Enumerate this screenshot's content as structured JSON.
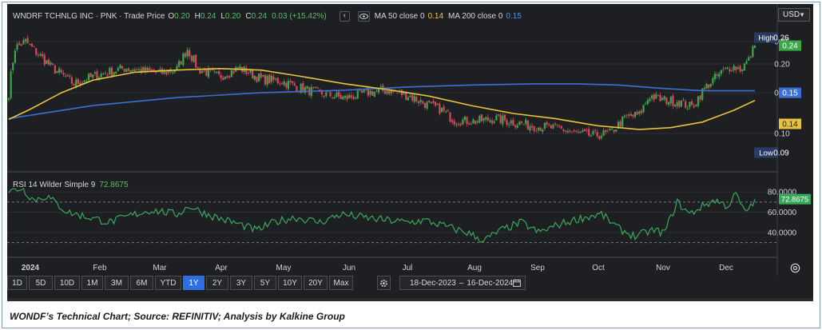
{
  "legend": {
    "symbol": "WNDRF TCHNLG INC · PNK · Trade Price",
    "o_label": "O",
    "o_value": "0.20",
    "h_label": "H",
    "h_value": "0.24",
    "l_label": "L",
    "l_value": "0.20",
    "c_label": "C",
    "c_value": "0.24",
    "change": "0.03 (+15.42%)",
    "ma50_label": "MA 50 close 0",
    "ma50_value": "0.14",
    "ma200_label": "MA 200 close 0",
    "ma200_value": "0.15",
    "collapse_icon": "chevron-left-icon",
    "visibility_icon": "eye-icon"
  },
  "currency": {
    "label": "USD",
    "icon": "chevron-down-icon"
  },
  "rsi_legend": {
    "label": "RSI 14 Wilder Simple 9",
    "value": "72.8675"
  },
  "colors": {
    "panel": "#1e1f22",
    "up": "#3aa84a",
    "down": "#d8455c",
    "ma50": "#e8c33a",
    "ma200": "#3a6fd8",
    "rsi": "#39a85a",
    "active_tab": "#2f6ee0"
  },
  "tabs": [
    {
      "label": "1D"
    },
    {
      "label": "5D"
    },
    {
      "label": "10D"
    },
    {
      "label": "1M"
    },
    {
      "label": "3M"
    },
    {
      "label": "6M"
    },
    {
      "label": "YTD"
    },
    {
      "label": "1Y",
      "active": true
    },
    {
      "label": "2Y"
    },
    {
      "label": "3Y"
    },
    {
      "label": "5Y"
    },
    {
      "label": "10Y"
    },
    {
      "label": "20Y"
    },
    {
      "label": "Max"
    }
  ],
  "date_range": {
    "from": "18-Dec-2023",
    "separator": "–",
    "to": "16-Dec-2024",
    "icon": "calendar-icon"
  },
  "settings_icon": "settings-icon",
  "caption": "WONDF’s Technical Chart; Source: REFINITIV; Analysis by Kalkine Group",
  "chart_data": {
    "type": "candlestick",
    "title": "WNDRF TCHNLG INC · PNK · Trade Price",
    "x_tick_labels": [
      "2024",
      "Feb",
      "Mar",
      "Apr",
      "May",
      "Jun",
      "Jul",
      "Aug",
      "Sep",
      "Oct",
      "Nov",
      "Dec"
    ],
    "price_axis": {
      "ticks": [
        0.1,
        0.15,
        0.2,
        0.25
      ],
      "tick_labels": [
        "0.10",
        "0.15",
        "0.20",
        "0.25"
      ],
      "ylim": [
        0.08,
        0.275
      ],
      "scale": "log"
    },
    "price_markers": [
      {
        "label": "High",
        "value": "0.26",
        "style": "high"
      },
      {
        "label": "",
        "value": "0.24",
        "style": "last"
      },
      {
        "label": "",
        "value": "0.15",
        "style": "ma200"
      },
      {
        "label": "",
        "value": "0.14",
        "style": "ma50"
      },
      {
        "label": "Low",
        "value": "0.09",
        "style": "low"
      }
    ],
    "price_anchors": [
      {
        "i": 0,
        "v": 0.15
      },
      {
        "i": 3,
        "v": 0.235
      },
      {
        "i": 8,
        "v": 0.25
      },
      {
        "i": 14,
        "v": 0.22
      },
      {
        "i": 20,
        "v": 0.195
      },
      {
        "i": 25,
        "v": 0.18
      },
      {
        "i": 31,
        "v": 0.164
      },
      {
        "i": 40,
        "v": 0.176
      },
      {
        "i": 55,
        "v": 0.192
      },
      {
        "i": 65,
        "v": 0.186
      },
      {
        "i": 72,
        "v": 0.182
      },
      {
        "i": 80,
        "v": 0.19
      },
      {
        "i": 85,
        "v": 0.232
      },
      {
        "i": 90,
        "v": 0.19
      },
      {
        "i": 100,
        "v": 0.176
      },
      {
        "i": 110,
        "v": 0.192
      },
      {
        "i": 120,
        "v": 0.172
      },
      {
        "i": 130,
        "v": 0.168
      },
      {
        "i": 140,
        "v": 0.156
      },
      {
        "i": 150,
        "v": 0.148
      },
      {
        "i": 160,
        "v": 0.142
      },
      {
        "i": 170,
        "v": 0.15
      },
      {
        "i": 180,
        "v": 0.154
      },
      {
        "i": 190,
        "v": 0.146
      },
      {
        "i": 200,
        "v": 0.132
      },
      {
        "i": 205,
        "v": 0.128
      },
      {
        "i": 212,
        "v": 0.114
      },
      {
        "i": 222,
        "v": 0.113
      },
      {
        "i": 232,
        "v": 0.116
      },
      {
        "i": 242,
        "v": 0.111
      },
      {
        "i": 252,
        "v": 0.107
      },
      {
        "i": 262,
        "v": 0.105
      },
      {
        "i": 270,
        "v": 0.1
      },
      {
        "i": 278,
        "v": 0.098
      },
      {
        "i": 286,
        "v": 0.1
      },
      {
        "i": 294,
        "v": 0.118
      },
      {
        "i": 300,
        "v": 0.12
      },
      {
        "i": 305,
        "v": 0.146
      },
      {
        "i": 310,
        "v": 0.14
      },
      {
        "i": 318,
        "v": 0.138
      },
      {
        "i": 325,
        "v": 0.13
      },
      {
        "i": 332,
        "v": 0.16
      },
      {
        "i": 338,
        "v": 0.18
      },
      {
        "i": 344,
        "v": 0.196
      },
      {
        "i": 348,
        "v": 0.19
      },
      {
        "i": 352,
        "v": 0.207
      },
      {
        "i": 355,
        "v": 0.24
      }
    ],
    "sessions": 356,
    "ma50": [
      [
        0,
        0.115
      ],
      [
        10,
        0.127
      ],
      [
        25,
        0.15
      ],
      [
        40,
        0.17
      ],
      [
        60,
        0.184
      ],
      [
        80,
        0.188
      ],
      [
        100,
        0.191
      ],
      [
        120,
        0.188
      ],
      [
        140,
        0.176
      ],
      [
        160,
        0.164
      ],
      [
        180,
        0.155
      ],
      [
        200,
        0.145
      ],
      [
        220,
        0.132
      ],
      [
        240,
        0.122
      ],
      [
        260,
        0.116
      ],
      [
        280,
        0.108
      ],
      [
        300,
        0.104
      ],
      [
        315,
        0.106
      ],
      [
        330,
        0.112
      ],
      [
        345,
        0.126
      ],
      [
        355,
        0.139
      ]
    ],
    "ma200": [
      [
        0,
        0.116
      ],
      [
        40,
        0.132
      ],
      [
        80,
        0.143
      ],
      [
        120,
        0.15
      ],
      [
        160,
        0.154
      ],
      [
        190,
        0.159
      ],
      [
        220,
        0.162
      ],
      [
        250,
        0.164
      ],
      [
        270,
        0.164
      ],
      [
        290,
        0.162
      ],
      [
        310,
        0.157
      ],
      [
        330,
        0.153
      ],
      [
        355,
        0.153
      ]
    ],
    "rsi": {
      "label": "RSI 14 Wilder Simple 9",
      "value": "72.8675",
      "ticks": [
        "80.0000",
        "60.0000",
        "40.0000"
      ],
      "tick_values": [
        80,
        60,
        40
      ],
      "ylim": [
        25,
        88
      ],
      "guides": [
        70,
        30
      ],
      "last_marker": "72.8675",
      "anchors": [
        {
          "i": 0,
          "v": 80
        },
        {
          "i": 6,
          "v": 84
        },
        {
          "i": 12,
          "v": 72
        },
        {
          "i": 18,
          "v": 76
        },
        {
          "i": 28,
          "v": 60
        },
        {
          "i": 36,
          "v": 56
        },
        {
          "i": 48,
          "v": 50
        },
        {
          "i": 60,
          "v": 58
        },
        {
          "i": 68,
          "v": 62
        },
        {
          "i": 80,
          "v": 58
        },
        {
          "i": 86,
          "v": 66
        },
        {
          "i": 92,
          "v": 60
        },
        {
          "i": 100,
          "v": 54
        },
        {
          "i": 110,
          "v": 48
        },
        {
          "i": 118,
          "v": 42
        },
        {
          "i": 126,
          "v": 50
        },
        {
          "i": 136,
          "v": 55
        },
        {
          "i": 148,
          "v": 50
        },
        {
          "i": 158,
          "v": 58
        },
        {
          "i": 168,
          "v": 55
        },
        {
          "i": 180,
          "v": 52
        },
        {
          "i": 190,
          "v": 50
        },
        {
          "i": 198,
          "v": 52
        },
        {
          "i": 208,
          "v": 46
        },
        {
          "i": 218,
          "v": 40
        },
        {
          "i": 226,
          "v": 32
        },
        {
          "i": 234,
          "v": 42
        },
        {
          "i": 244,
          "v": 50
        },
        {
          "i": 252,
          "v": 40
        },
        {
          "i": 262,
          "v": 48
        },
        {
          "i": 272,
          "v": 54
        },
        {
          "i": 282,
          "v": 58
        },
        {
          "i": 290,
          "v": 44
        },
        {
          "i": 298,
          "v": 36
        },
        {
          "i": 306,
          "v": 42
        },
        {
          "i": 312,
          "v": 40
        },
        {
          "i": 318,
          "v": 70
        },
        {
          "i": 324,
          "v": 58
        },
        {
          "i": 330,
          "v": 66
        },
        {
          "i": 336,
          "v": 72
        },
        {
          "i": 342,
          "v": 66
        },
        {
          "i": 346,
          "v": 78
        },
        {
          "i": 350,
          "v": 60
        },
        {
          "i": 353,
          "v": 66
        },
        {
          "i": 355,
          "v": 72.87
        }
      ]
    }
  }
}
